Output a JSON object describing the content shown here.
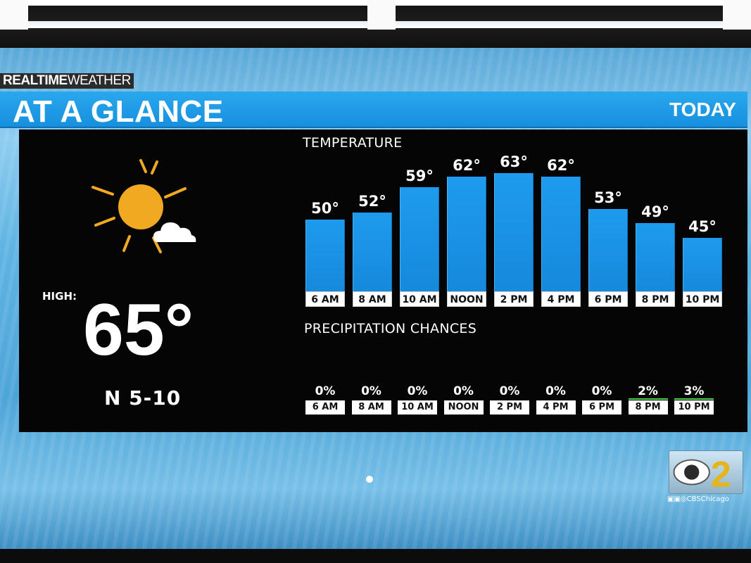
{
  "header": {
    "brand_bold": "REALTIME",
    "brand_light": "WEATHER",
    "title": "AT A GLANCE",
    "period": "TODAY"
  },
  "summary": {
    "icon": "sun-with-cloud-icon",
    "high_label": "HIGH:",
    "high_value": "65°",
    "wind": "N  5-10"
  },
  "temperature": {
    "heading": "TEMPERATURE",
    "chart_data": {
      "type": "bar",
      "categories": [
        "6 AM",
        "8 AM",
        "10 AM",
        "NOON",
        "2 PM",
        "4 PM",
        "6 PM",
        "8 PM",
        "10 PM"
      ],
      "values": [
        50,
        52,
        59,
        62,
        63,
        62,
        53,
        49,
        45
      ],
      "value_labels": [
        "50°",
        "52°",
        "59°",
        "62°",
        "63°",
        "62°",
        "53°",
        "49°",
        "45°"
      ]
    }
  },
  "precipitation": {
    "heading": "PRECIPITATION CHANCES",
    "items": [
      {
        "time": "6 AM",
        "value": "0%"
      },
      {
        "time": "8 AM",
        "value": "0%"
      },
      {
        "time": "10 AM",
        "value": "0%"
      },
      {
        "time": "NOON",
        "value": "0%"
      },
      {
        "time": "2 PM",
        "value": "0%"
      },
      {
        "time": "4 PM",
        "value": "0%"
      },
      {
        "time": "6 PM",
        "value": "0%"
      },
      {
        "time": "8 PM",
        "value": "2%"
      },
      {
        "time": "10 PM",
        "value": "3%"
      }
    ]
  },
  "station": {
    "logo_number": "2",
    "social_handle": "CBSChicago"
  },
  "colors": {
    "bar_blue": "#1e9bee",
    "title_blue": "#1f9ee9",
    "precip_green": "#4fd04f",
    "sun_orange": "#f2a922"
  }
}
